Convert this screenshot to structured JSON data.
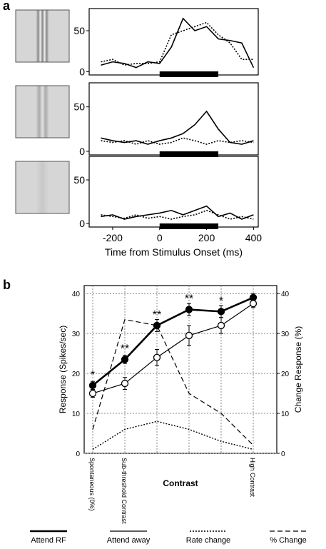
{
  "panel_labels": [
    "a",
    "b"
  ],
  "chart_data": [
    {
      "type": "line",
      "xlim": [
        -300,
        420
      ],
      "ylim": [
        -4,
        77
      ],
      "yticks": [
        0,
        50
      ],
      "stimulus": [
        0,
        250
      ],
      "x": [
        -250,
        -200,
        -150,
        -100,
        -50,
        0,
        50,
        100,
        150,
        200,
        250,
        300,
        350,
        400
      ],
      "series": [
        {
          "style": "solid",
          "color": "#000000",
          "values": [
            8,
            12,
            10,
            5,
            12,
            10,
            30,
            65,
            50,
            55,
            40,
            38,
            35,
            5
          ]
        },
        {
          "style": "dotted",
          "color": "#000000",
          "values": [
            12,
            15,
            8,
            10,
            10,
            12,
            45,
            50,
            55,
            60,
            45,
            35,
            15,
            15
          ]
        }
      ]
    },
    {
      "type": "line",
      "xlim": [
        -300,
        420
      ],
      "ylim": [
        -4,
        77
      ],
      "yticks": [
        0,
        50
      ],
      "stimulus": [
        0,
        250
      ],
      "x": [
        -250,
        -200,
        -150,
        -100,
        -50,
        0,
        50,
        100,
        150,
        200,
        250,
        300,
        350,
        400
      ],
      "series": [
        {
          "style": "solid",
          "color": "#000000",
          "values": [
            15,
            12,
            10,
            12,
            8,
            12,
            15,
            20,
            30,
            45,
            25,
            10,
            8,
            12
          ]
        },
        {
          "style": "dotted",
          "color": "#000000",
          "values": [
            12,
            10,
            12,
            8,
            12,
            8,
            10,
            15,
            12,
            8,
            12,
            10,
            12,
            10
          ]
        }
      ]
    },
    {
      "type": "line",
      "xlim": [
        -300,
        420
      ],
      "ylim": [
        -4,
        77
      ],
      "yticks": [
        0,
        50
      ],
      "xticks": [
        -200,
        0,
        200,
        400
      ],
      "stimulus": [
        0,
        250
      ],
      "xlabel": "Time from Stimulus Onset (ms)",
      "x": [
        -250,
        -200,
        -150,
        -100,
        -50,
        0,
        50,
        100,
        150,
        200,
        250,
        300,
        350,
        400
      ],
      "series": [
        {
          "style": "solid",
          "color": "#000000",
          "values": [
            8,
            10,
            5,
            8,
            10,
            12,
            15,
            10,
            15,
            20,
            8,
            12,
            5,
            10
          ]
        },
        {
          "style": "dotted",
          "color": "#000000",
          "values": [
            10,
            8,
            6,
            10,
            6,
            8,
            5,
            8,
            10,
            15,
            10,
            5,
            8,
            5
          ]
        }
      ]
    },
    {
      "type": "category-line",
      "ylim": [
        0,
        42
      ],
      "yticks": [
        0,
        10,
        20,
        30,
        40
      ],
      "y2lim": [
        0,
        42
      ],
      "y2ticks": [
        0,
        10,
        20,
        30,
        40
      ],
      "grid": true,
      "ylabel": "Response (Spikes/sec)",
      "y2label": "Change Response (%)",
      "xlabel": "Contrast",
      "categories": [
        "Spontaneous (0%)",
        "Sub-threshold Contrast",
        null,
        null,
        null,
        "High Contrast"
      ],
      "significance": [
        "*",
        "**",
        "**",
        "**",
        "*",
        null
      ],
      "series": [
        {
          "name": "Attend RF",
          "style": "solid",
          "marker": "filled",
          "color": "#000000",
          "values": [
            17,
            23.5,
            32,
            36,
            35.5,
            39
          ],
          "errors": [
            1,
            1,
            1.5,
            1.5,
            1.5,
            1
          ]
        },
        {
          "name": "Attend away",
          "style": "thin",
          "marker": "open",
          "color": "#000000",
          "values": [
            15,
            17.5,
            24,
            29.5,
            32,
            37.5
          ],
          "errors": [
            1,
            1.5,
            2,
            2.5,
            2,
            1
          ]
        },
        {
          "name": "Rate change",
          "style": "dotted",
          "color": "#000000",
          "values": [
            1,
            6,
            8,
            6,
            3,
            1
          ]
        },
        {
          "name": "% Change",
          "style": "dashed",
          "color": "#000000",
          "axis": "y2",
          "values": [
            6,
            33.5,
            32,
            15,
            10,
            2
          ]
        }
      ]
    }
  ]
}
